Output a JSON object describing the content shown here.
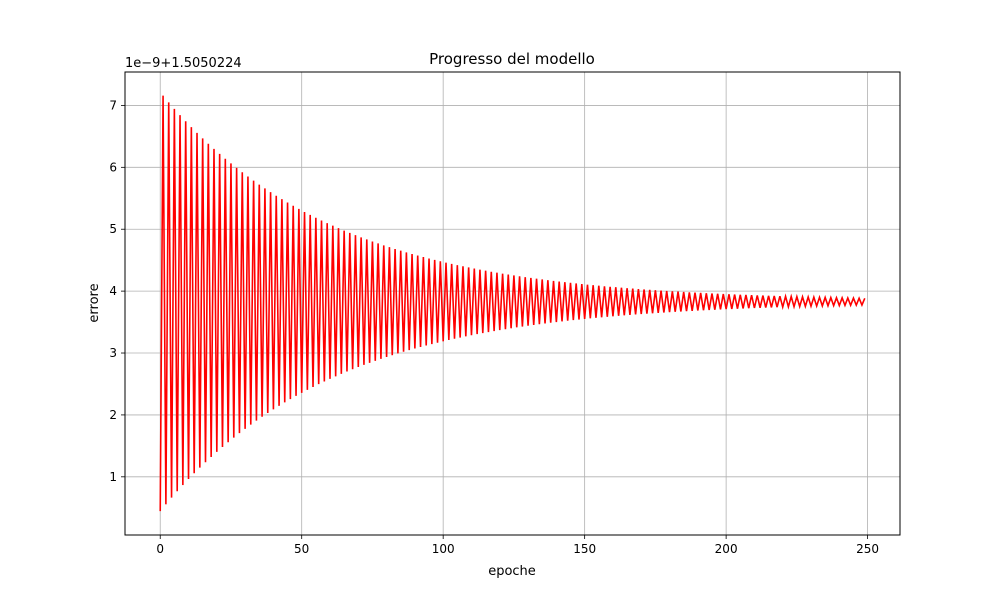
{
  "chart_data": {
    "type": "line",
    "title": "Progresso del modello",
    "xlabel": "epoche",
    "ylabel": "errore",
    "offset_label": "1e−9+1.5050224",
    "xlim": [
      -12.45,
      261.45
    ],
    "ylim": [
      0.06,
      7.54
    ],
    "xticks": [
      0,
      50,
      100,
      150,
      200,
      250
    ],
    "xtick_labels": [
      "0",
      "50",
      "100",
      "150",
      "200",
      "250"
    ],
    "yticks": [
      1,
      2,
      3,
      4,
      5,
      6,
      7
    ],
    "ytick_labels": [
      "1",
      "2",
      "3",
      "4",
      "5",
      "6",
      "7"
    ],
    "grid": true,
    "series": [
      {
        "color": "#ff0000",
        "x_start": 0,
        "x_end": 249,
        "x_step": 1,
        "y_values_note": "damped alternating oscillation around 3.83 (offset-scaled units)",
        "equilibrium": 3.83,
        "first_low": 0.4,
        "first_high": 7.17,
        "last_low": 3.8,
        "last_high": 3.86,
        "decay_per_epoch": 0.9835
      }
    ]
  }
}
